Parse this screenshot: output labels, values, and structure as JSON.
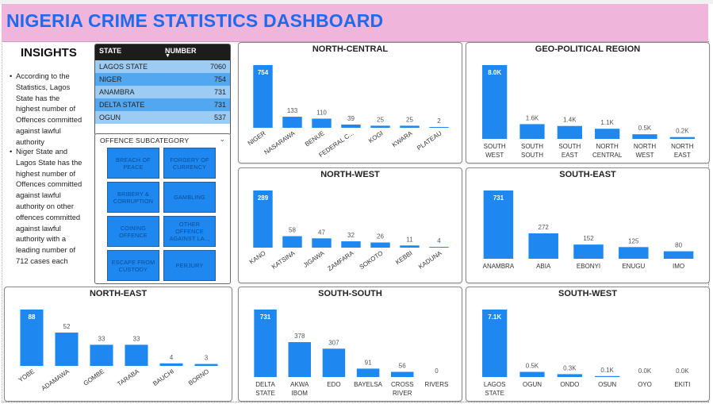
{
  "title": "NIGERIA CRIME STATISTICS DASHBOARD",
  "insights": {
    "heading": "INSIGHTS",
    "points": [
      "According to the Statistics, Lagos State has the highest number of Offences committed against lawful authority",
      "Niger State and Lagos State has the highest number of Offences committed against lawful authority on other offences committed against lawful authority with a leading number of 712 cases each"
    ]
  },
  "state_table": {
    "headers": [
      "STATE",
      "NUMBER"
    ],
    "rows": [
      {
        "state": "LAGOS STATE",
        "number": "7060"
      },
      {
        "state": "NIGER",
        "number": "754"
      },
      {
        "state": "ANAMBRA",
        "number": "731"
      },
      {
        "state": "DELTA STATE",
        "number": "731"
      },
      {
        "state": "OGUN",
        "number": "537"
      }
    ]
  },
  "slicer": {
    "title": "OFFENCE SUBCATEGORY",
    "options": [
      "BREACH OF PEACE",
      "FORGERY OF CURRENCY",
      "BRIBERY & CORRUPTION",
      "GAMBLING",
      "COINING OFFENCE",
      "OTHER OFFENCE AGAINST LA...",
      "ESCAPE FROM CUSTODY",
      "PERJURY"
    ]
  },
  "colors": {
    "bar": "#1e88f0",
    "header_bg": "#f0b5da",
    "title": "#1e6bf0"
  },
  "chart_data": [
    {
      "type": "bar",
      "title": "NORTH-CENTRAL",
      "categories": [
        "NIGER",
        "NASARAWA",
        "BENUE",
        "FEDERAL C...",
        "KOGI",
        "KWARA",
        "PLATEAU"
      ],
      "values": [
        754,
        133,
        110,
        39,
        25,
        25,
        2
      ],
      "labels": [
        "754",
        "133",
        "110",
        "39",
        "25",
        "25",
        "2"
      ],
      "rotated": true
    },
    {
      "type": "bar",
      "title": "GEO-POLITICAL REGION",
      "categories": [
        "SOUTH WEST",
        "SOUTH SOUTH",
        "SOUTH EAST",
        "NORTH CENTRAL",
        "NORTH WEST",
        "NORTH EAST"
      ],
      "values": [
        8000,
        1600,
        1400,
        1100,
        500,
        200
      ],
      "labels": [
        "8.0K",
        "1.6K",
        "1.4K",
        "1.1K",
        "0.5K",
        "0.2K"
      ],
      "rotated": false
    },
    {
      "type": "bar",
      "title": "NORTH-WEST",
      "categories": [
        "KANO",
        "KATSINA",
        "JIGAWA",
        "ZAMFARA",
        "SOKOTO",
        "KEBBI",
        "KADUNA"
      ],
      "values": [
        289,
        58,
        47,
        32,
        26,
        11,
        4
      ],
      "labels": [
        "289",
        "58",
        "47",
        "32",
        "26",
        "11",
        "4"
      ],
      "rotated": true
    },
    {
      "type": "bar",
      "title": "SOUTH-EAST",
      "categories": [
        "ANAMBRA",
        "ABIA",
        "EBONYI",
        "ENUGU",
        "IMO"
      ],
      "values": [
        731,
        272,
        152,
        125,
        80
      ],
      "labels": [
        "731",
        "272",
        "152",
        "125",
        "80"
      ],
      "rotated": false
    },
    {
      "type": "bar",
      "title": "NORTH-EAST",
      "categories": [
        "YOBE",
        "ADAMAWA",
        "GOMBE",
        "TARABA",
        "BAUCHI",
        "BORNO"
      ],
      "values": [
        88,
        52,
        33,
        33,
        4,
        3
      ],
      "labels": [
        "88",
        "52",
        "33",
        "33",
        "4",
        "3"
      ],
      "rotated": true
    },
    {
      "type": "bar",
      "title": "SOUTH-SOUTH",
      "categories": [
        "DELTA STATE",
        "AKWA IBOM",
        "EDO",
        "BAYELSA",
        "CROSS RIVER",
        "RIVERS"
      ],
      "values": [
        731,
        378,
        307,
        91,
        56,
        0
      ],
      "labels": [
        "731",
        "378",
        "307",
        "91",
        "56",
        "0"
      ],
      "rotated": false
    },
    {
      "type": "bar",
      "title": "SOUTH-WEST",
      "categories": [
        "LAGOS STATE",
        "OGUN",
        "ONDO",
        "OSUN",
        "OYO",
        "EKITI"
      ],
      "values": [
        7060,
        537,
        300,
        100,
        0,
        0
      ],
      "labels": [
        "7.1K",
        "0.5K",
        "0.3K",
        "0.1K",
        "0.0K",
        "0.0K"
      ],
      "rotated": false
    }
  ]
}
